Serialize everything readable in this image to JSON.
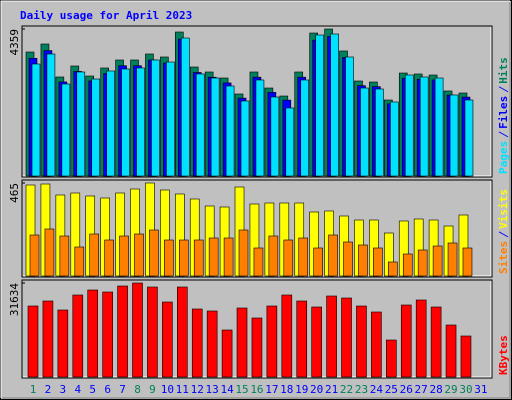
{
  "chart_data": [
    {
      "type": "bar",
      "title": "Daily usage for April 2023",
      "categories": [
        "1",
        "2",
        "3",
        "4",
        "5",
        "6",
        "7",
        "8",
        "9",
        "10",
        "11",
        "12",
        "13",
        "14",
        "15",
        "16",
        "17",
        "18",
        "19",
        "20",
        "21",
        "22",
        "23",
        "24",
        "25",
        "26",
        "27",
        "28",
        "29",
        "30",
        "31"
      ],
      "label_colors": [
        "#00805c",
        "#0000ff",
        "#0000ff",
        "#0000ff",
        "#0000ff",
        "#0000ff",
        "#0000ff",
        "#00805c",
        "#00805c",
        "#0000ff",
        "#0000ff",
        "#0000ff",
        "#0000ff",
        "#0000ff",
        "#00805c",
        "#00805c",
        "#0000ff",
        "#0000ff",
        "#0000ff",
        "#0000ff",
        "#0000ff",
        "#00805c",
        "#00805c",
        "#0000ff",
        "#0000ff",
        "#0000ff",
        "#0000ff",
        "#0000ff",
        "#00805c",
        "#00805c",
        "#0000ff"
      ],
      "ylim": [
        0,
        4359
      ],
      "yticks": [
        4359
      ],
      "series": [
        {
          "name": "Hits",
          "color": "#00805c",
          "values": [
            3677,
            3914,
            2936,
            3262,
            2965,
            3203,
            3440,
            3440,
            3618,
            3529,
            4270,
            3232,
            3084,
            2906,
            2432,
            3084,
            2609,
            2372,
            3084,
            4240,
            4359,
            3707,
            2817,
            2787,
            2254,
            3054,
            3025,
            2995,
            2521,
            2461,
            null
          ]
        },
        {
          "name": "Files",
          "color": "#0000ff",
          "values": [
            3490,
            3720,
            2790,
            3100,
            2820,
            3040,
            3270,
            3270,
            3440,
            3350,
            4060,
            3070,
            2930,
            2760,
            2310,
            2930,
            2480,
            2250,
            2930,
            4030,
            4140,
            3520,
            2680,
            2650,
            2140,
            2900,
            2870,
            2850,
            2400,
            2340,
            null
          ]
        },
        {
          "name": "Pages",
          "color": "#00e0ff",
          "values": [
            3321,
            3618,
            2728,
            3084,
            2876,
            3114,
            3173,
            3203,
            3440,
            3380,
            4092,
            3025,
            2906,
            2669,
            2224,
            2847,
            2343,
            2017,
            2847,
            4181,
            4211,
            3529,
            2609,
            2580,
            2195,
            2995,
            2936,
            2906,
            2402,
            2254,
            null
          ]
        }
      ]
    },
    {
      "type": "bar",
      "ylim": [
        0,
        465
      ],
      "yticks": [
        465
      ],
      "series": [
        {
          "name": "Visits",
          "color": "#ffff00",
          "values": [
            455,
            460,
            405,
            415,
            400,
            390,
            415,
            435,
            465,
            430,
            410,
            385,
            350,
            345,
            445,
            360,
            365,
            365,
            365,
            320,
            325,
            300,
            280,
            280,
            215,
            275,
            285,
            280,
            250,
            305,
            null
          ]
        },
        {
          "name": "Sites",
          "color": "#ff8000",
          "values": [
            205,
            235,
            200,
            145,
            210,
            180,
            200,
            210,
            230,
            180,
            180,
            180,
            190,
            190,
            230,
            140,
            200,
            180,
            190,
            140,
            205,
            170,
            155,
            140,
            70,
            110,
            130,
            150,
            165,
            140,
            null
          ]
        }
      ]
    },
    {
      "type": "bar",
      "ylim": [
        0,
        31634
      ],
      "yticks": [
        31634
      ],
      "series": [
        {
          "name": "KBytes",
          "color": "#ff0000",
          "values": [
            23893,
            25576,
            22547,
            27596,
            29279,
            28606,
            30625,
            31634,
            30288,
            25240,
            30288,
            22884,
            22211,
            15817,
            23221,
            19855,
            23893,
            27596,
            25576,
            23557,
            27259,
            26586,
            23893,
            21875,
            12452,
            24230,
            25913,
            23557,
            17500,
            13798,
            null
          ]
        }
      ]
    }
  ]
}
